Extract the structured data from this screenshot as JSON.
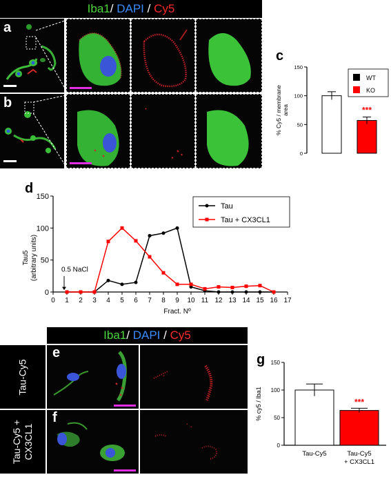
{
  "figure": {
    "top_header": {
      "iba1": "Iba1",
      "sep1": "/ ",
      "dapi": "DAPI",
      "sep2": " / ",
      "cy5": "Cy5"
    },
    "bottom_header": {
      "iba1": "Iba1",
      "sep1": "/ ",
      "dapi": "DAPI",
      "sep2": " / ",
      "cy5": "Cy5"
    },
    "panel_labels": {
      "a": "a",
      "b": "b",
      "c": "c",
      "d": "d",
      "e": "e",
      "f": "f",
      "g": "g"
    },
    "row_labels": {
      "tau_cy5": "Tau-Cy5",
      "tau_cy5_cx3cl1_line1": "Tau-Cy5 +",
      "tau_cy5_cx3cl1_line2": "CX3CL1"
    },
    "colors": {
      "iba1": "#4bd63b",
      "dapi": "#3a8cff",
      "cy5": "#ff2b2b",
      "scale_bar_magenta": "#e22ee2"
    }
  },
  "chart_data": [
    {
      "panel": "c",
      "type": "bar",
      "categories": [
        "WT",
        "KO"
      ],
      "values": [
        100,
        57
      ],
      "errors": [
        7,
        6
      ],
      "colors": [
        "#ffffff",
        "#ff0000"
      ],
      "ylabel_line1": "% Cy5 / membrane",
      "ylabel_line2": "area",
      "ylim": [
        0,
        150
      ],
      "yticks": [
        "0",
        "50",
        "100",
        "150"
      ],
      "legend": [
        {
          "label": "WT",
          "color": "#000000"
        },
        {
          "label": "KO",
          "color": "#ff0000"
        }
      ],
      "legend_position": "top-right",
      "significance": "***",
      "significance_color": "#ff0000"
    },
    {
      "panel": "d",
      "type": "line",
      "x": [
        1,
        2,
        3,
        4,
        5,
        6,
        7,
        8,
        9,
        10,
        11,
        12,
        13,
        14,
        15,
        16
      ],
      "series": [
        {
          "name": "Tau",
          "color": "#000000",
          "marker": "circle",
          "values": [
            0,
            0,
            0,
            18,
            12,
            15,
            88,
            92,
            100,
            8,
            2,
            0,
            0,
            0,
            0,
            0
          ]
        },
        {
          "name": "Tau + CX3CL1",
          "color": "#ff0000",
          "marker": "square",
          "values": [
            0,
            0,
            0,
            79,
            100,
            80,
            55,
            30,
            12,
            12,
            5,
            8,
            7,
            9,
            10,
            0
          ]
        }
      ],
      "xlabel": "Fract. Nº",
      "ylabel_line1": "Tau5",
      "ylabel_line2": "(arbitrary units)",
      "xlim": [
        0,
        17
      ],
      "ylim": [
        0,
        150
      ],
      "xticks": [
        "0",
        "1",
        "2",
        "3",
        "4",
        "5",
        "6",
        "7",
        "8",
        "9",
        "10",
        "11",
        "12",
        "13",
        "14",
        "15",
        "16",
        "17"
      ],
      "yticks": [
        "0",
        "50",
        "100",
        "150"
      ],
      "legend_position": "top-right",
      "annotation": "0.5 NaCl",
      "annotation_x": 0.8
    },
    {
      "panel": "g",
      "type": "bar",
      "categories": [
        "Tau-Cy5",
        "Tau-Cy5 + CX3CL1"
      ],
      "category_lines": [
        [
          "Tau-Cy5"
        ],
        [
          "Tau-Cy5",
          "+ CX3CL1"
        ]
      ],
      "values": [
        100,
        63
      ],
      "errors": [
        11,
        4
      ],
      "colors": [
        "#ffffff",
        "#ff0000"
      ],
      "ylabel": "% cy5 / Iba1",
      "ylim": [
        0,
        150
      ],
      "yticks": [
        "0",
        "50",
        "100",
        "150"
      ],
      "significance": "***",
      "significance_color": "#ff0000"
    }
  ]
}
